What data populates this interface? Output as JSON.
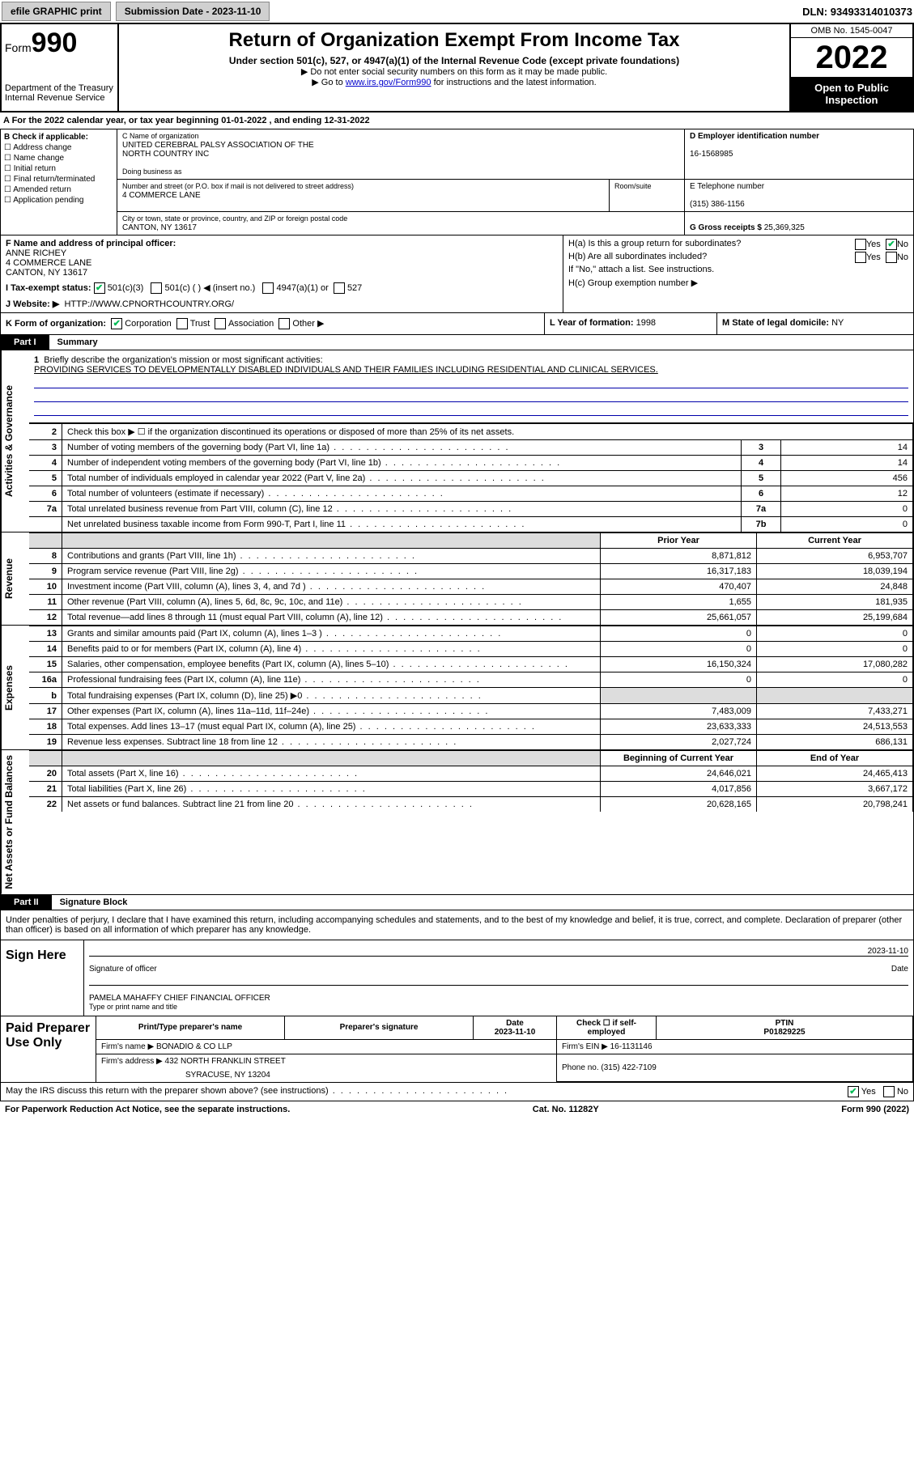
{
  "topbar": {
    "efile": "efile GRAPHIC print",
    "subm_label": "Submission Date - 2023-11-10",
    "dln_label": "DLN:",
    "dln": "93493314010373"
  },
  "header": {
    "form_prefix": "Form",
    "form_no": "990",
    "dept": "Department of the Treasury",
    "irs": "Internal Revenue Service",
    "title": "Return of Organization Exempt From Income Tax",
    "sub1": "Under section 501(c), 527, or 4947(a)(1) of the Internal Revenue Code (except private foundations)",
    "sub2": "▶ Do not enter social security numbers on this form as it may be made public.",
    "sub3_pre": "▶ Go to ",
    "sub3_link": "www.irs.gov/Form990",
    "sub3_post": " for instructions and the latest information.",
    "omb": "OMB No. 1545-0047",
    "year": "2022",
    "inspect": "Open to Public Inspection"
  },
  "a_line": "A For the 2022 calendar year, or tax year beginning 01-01-2022    , and ending 12-31-2022",
  "b": {
    "label": "B Check if applicable:",
    "addr": "Address change",
    "name": "Name change",
    "init": "Initial return",
    "final": "Final return/terminated",
    "amend": "Amended return",
    "app": "Application pending"
  },
  "c": {
    "name_label": "C Name of organization",
    "name1": "UNITED CEREBRAL PALSY ASSOCIATION OF THE",
    "name2": "NORTH COUNTRY INC",
    "dba_label": "Doing business as",
    "street_label": "Number and street (or P.O. box if mail is not delivered to street address)",
    "room_label": "Room/suite",
    "street": "4 COMMERCE LANE",
    "city_label": "City or town, state or province, country, and ZIP or foreign postal code",
    "city": "CANTON, NY  13617"
  },
  "d": {
    "label": "D Employer identification number",
    "val": "16-1568985"
  },
  "e": {
    "label": "E Telephone number",
    "val": "(315) 386-1156"
  },
  "g": {
    "label": "G Gross receipts $",
    "val": "25,369,325"
  },
  "f": {
    "label": "F Name and address of principal officer:",
    "n": "ANNE RICHEY",
    "a1": "4 COMMERCE LANE",
    "a2": "CANTON, NY  13617"
  },
  "h": {
    "a": "H(a)  Is this a group return for subordinates?",
    "a_yes": "Yes",
    "a_no": "No",
    "b": "H(b)  Are all subordinates included?",
    "b_yes": "Yes",
    "b_no": "No",
    "b_note": "If \"No,\" attach a list. See instructions.",
    "c": "H(c)  Group exemption number ▶"
  },
  "i": {
    "label": "I   Tax-exempt status:",
    "c3": "501(c)(3)",
    "c": "501(c) (  ) ◀ (insert no.)",
    "a1": "4947(a)(1) or",
    "s527": "527"
  },
  "j": {
    "label": "J   Website: ▶",
    "val": "HTTP://WWW.CPNORTHCOUNTRY.ORG/"
  },
  "k": {
    "label": "K Form of organization:",
    "corp": "Corporation",
    "trust": "Trust",
    "assoc": "Association",
    "other": "Other ▶"
  },
  "l": {
    "label": "L Year of formation:",
    "val": "1998"
  },
  "m": {
    "label": "M State of legal domicile:",
    "val": "NY"
  },
  "part1": {
    "tag": "Part I",
    "label": "Summary"
  },
  "summary": {
    "l1": "Briefly describe the organization's mission or most significant activities:",
    "mission": "PROVIDING SERVICES TO DEVELOPMENTALLY DISABLED INDIVIDUALS AND THEIR FAMILIES INCLUDING RESIDENTIAL AND CLINICAL SERVICES.",
    "l2": "Check this box ▶ ☐  if the organization discontinued its operations or disposed of more than 25% of its net assets.",
    "l3": "Number of voting members of the governing body (Part VI, line 1a)",
    "v3": "14",
    "l4": "Number of independent voting members of the governing body (Part VI, line 1b)",
    "v4": "14",
    "l5": "Total number of individuals employed in calendar year 2022 (Part V, line 2a)",
    "v5": "456",
    "l6": "Total number of volunteers (estimate if necessary)",
    "v6": "12",
    "l7a": "Total unrelated business revenue from Part VIII, column (C), line 12",
    "v7a": "0",
    "l7b": "Net unrelated business taxable income from Form 990-T, Part I, line 11",
    "v7b": "0"
  },
  "revhdr": {
    "prior": "Prior Year",
    "curr": "Current Year"
  },
  "revenue": [
    {
      "n": "8",
      "d": "Contributions and grants (Part VIII, line 1h)",
      "p": "8,871,812",
      "c": "6,953,707"
    },
    {
      "n": "9",
      "d": "Program service revenue (Part VIII, line 2g)",
      "p": "16,317,183",
      "c": "18,039,194"
    },
    {
      "n": "10",
      "d": "Investment income (Part VIII, column (A), lines 3, 4, and 7d )",
      "p": "470,407",
      "c": "24,848"
    },
    {
      "n": "11",
      "d": "Other revenue (Part VIII, column (A), lines 5, 6d, 8c, 9c, 10c, and 11e)",
      "p": "1,655",
      "c": "181,935"
    },
    {
      "n": "12",
      "d": "Total revenue—add lines 8 through 11 (must equal Part VIII, column (A), line 12)",
      "p": "25,661,057",
      "c": "25,199,684"
    }
  ],
  "expenses": [
    {
      "n": "13",
      "d": "Grants and similar amounts paid (Part IX, column (A), lines 1–3 )",
      "p": "0",
      "c": "0"
    },
    {
      "n": "14",
      "d": "Benefits paid to or for members (Part IX, column (A), line 4)",
      "p": "0",
      "c": "0"
    },
    {
      "n": "15",
      "d": "Salaries, other compensation, employee benefits (Part IX, column (A), lines 5–10)",
      "p": "16,150,324",
      "c": "17,080,282"
    },
    {
      "n": "16a",
      "d": "Professional fundraising fees (Part IX, column (A), line 11e)",
      "p": "0",
      "c": "0"
    },
    {
      "n": "b",
      "d": "Total fundraising expenses (Part IX, column (D), line 25) ▶0",
      "p": "",
      "c": "",
      "gray": true
    },
    {
      "n": "17",
      "d": "Other expenses (Part IX, column (A), lines 11a–11d, 11f–24e)",
      "p": "7,483,009",
      "c": "7,433,271"
    },
    {
      "n": "18",
      "d": "Total expenses. Add lines 13–17 (must equal Part IX, column (A), line 25)",
      "p": "23,633,333",
      "c": "24,513,553"
    },
    {
      "n": "19",
      "d": "Revenue less expenses. Subtract line 18 from line 12",
      "p": "2,027,724",
      "c": "686,131"
    }
  ],
  "nahdr": {
    "prior": "Beginning of Current Year",
    "curr": "End of Year"
  },
  "netassets": [
    {
      "n": "20",
      "d": "Total assets (Part X, line 16)",
      "p": "24,646,021",
      "c": "24,465,413"
    },
    {
      "n": "21",
      "d": "Total liabilities (Part X, line 26)",
      "p": "4,017,856",
      "c": "3,667,172"
    },
    {
      "n": "22",
      "d": "Net assets or fund balances. Subtract line 21 from line 20",
      "p": "20,628,165",
      "c": "20,798,241"
    }
  ],
  "part2": {
    "tag": "Part II",
    "label": "Signature Block"
  },
  "sig": {
    "decl": "Under penalties of perjury, I declare that I have examined this return, including accompanying schedules and statements, and to the best of my knowledge and belief, it is true, correct, and complete. Declaration of preparer (other than officer) is based on all information of which preparer has any knowledge.",
    "sign_here": "Sign Here",
    "sig_of": "Signature of officer",
    "date": "Date",
    "date_val": "2023-11-10",
    "typed": "PAMELA MAHAFFY CHIEF FINANCIAL OFFICER",
    "typed_label": "Type or print name and title"
  },
  "prep": {
    "label": "Paid Preparer Use Only",
    "h_name": "Print/Type preparer's name",
    "h_sig": "Preparer's signature",
    "h_date": "Date",
    "h_self": "Check ☐ if self-employed",
    "h_ptin": "PTIN",
    "date": "2023-11-10",
    "ptin": "P01829225",
    "firm_name_label": "Firm's name    ▶",
    "firm_name": "BONADIO & CO LLP",
    "firm_ein_label": "Firm's EIN ▶",
    "firm_ein": "16-1131146",
    "firm_addr_label": "Firm's address ▶",
    "firm_addr1": "432 NORTH FRANKLIN STREET",
    "firm_addr2": "SYRACUSE, NY  13204",
    "phone_label": "Phone no.",
    "phone": "(315) 422-7109"
  },
  "may": {
    "q": "May the IRS discuss this return with the preparer shown above? (see instructions)",
    "yes": "Yes",
    "no": "No"
  },
  "foot": {
    "left": "For Paperwork Reduction Act Notice, see the separate instructions.",
    "mid": "Cat. No. 11282Y",
    "right": "Form 990 (2022)"
  },
  "vlabels": {
    "act": "Activities & Governance",
    "rev": "Revenue",
    "exp": "Expenses",
    "na": "Net Assets or Fund Balances"
  }
}
